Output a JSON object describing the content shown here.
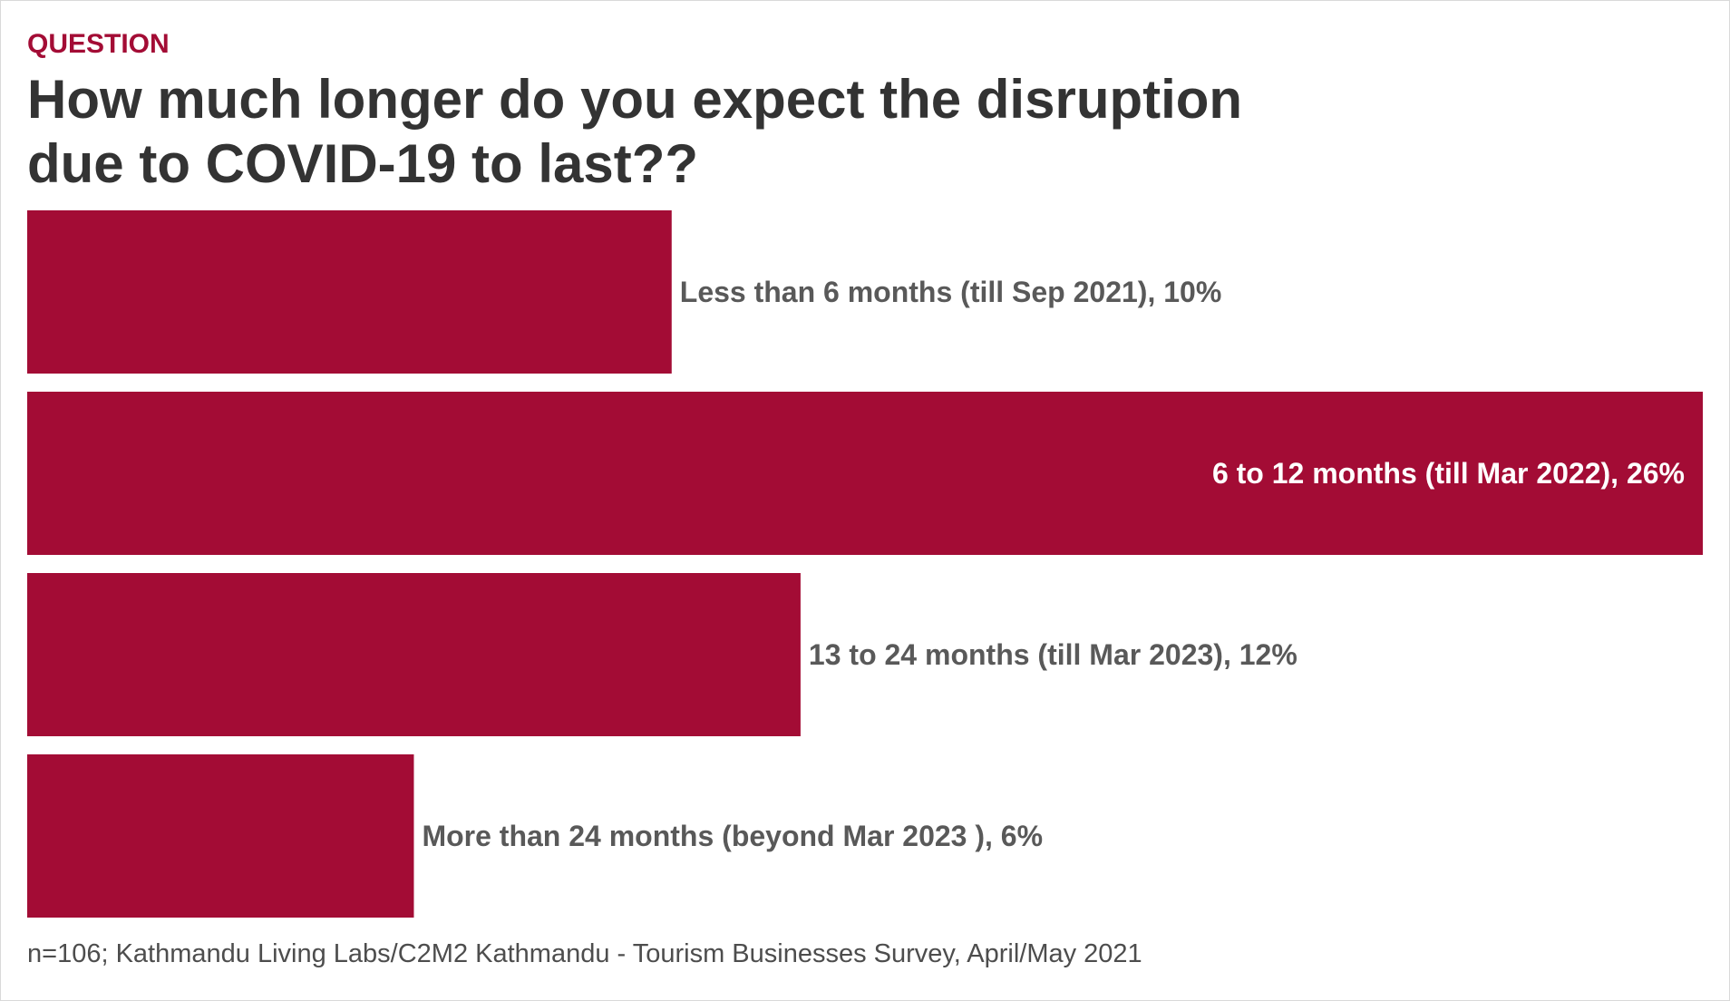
{
  "header": {
    "eyebrow": "QUESTION",
    "title": "How much longer do you expect the disruption due to COVID-19 to last??"
  },
  "footer": {
    "source": "n=106; Kathmandu Living Labs/C2M2 Kathmandu - Tourism Businesses Survey, April/May 2021"
  },
  "colors": {
    "bar": "#a30c35",
    "label_outside": "#595959",
    "label_inside": "#ffffff",
    "eyebrow": "#a30c35",
    "title": "#333333"
  },
  "chart_data": {
    "type": "bar",
    "orientation": "horizontal",
    "categories": [
      "Less than 6 months (till Sep 2021), 10%",
      "6 to 12 months (till Mar 2022), 26%",
      "13 to 24 months (till Mar 2023), 12%",
      "More than 24 months (beyond Mar 2023 ), 6%"
    ],
    "values": [
      10,
      26,
      12,
      6
    ],
    "unit": "%",
    "xlim": [
      0,
      26
    ],
    "grid": false,
    "legend": "none"
  }
}
